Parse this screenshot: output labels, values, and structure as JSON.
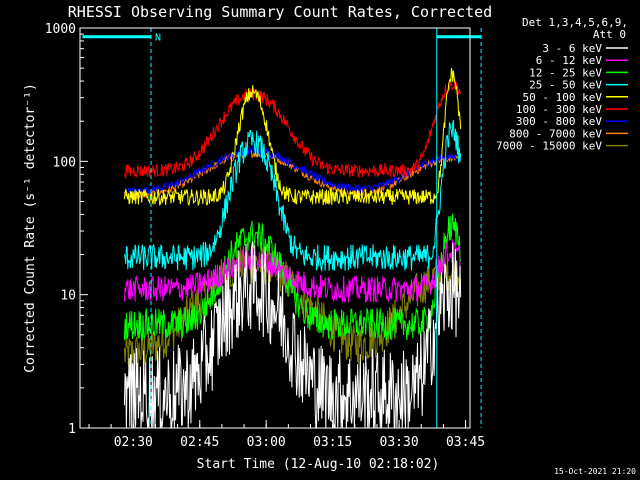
{
  "chart_data": {
    "type": "line",
    "title": "RHESSI Observing Summary Count Rates, Corrected",
    "ylabel": "Corrected Count Rate (s⁻¹ detector⁻¹)",
    "xlabel": "Start Time (12-Aug-10 02:18:02)",
    "y_scale": "log",
    "ylim": [
      1,
      1000
    ],
    "y_ticks": [
      {
        "value": 1,
        "label": "1"
      },
      {
        "value": 10,
        "label": "10"
      },
      {
        "value": 100,
        "label": "100"
      },
      {
        "value": 1000,
        "label": "1000"
      }
    ],
    "xlim_minutes": [
      -12.03,
      76
    ],
    "x_ticks": [
      {
        "minute": 0,
        "label": "02:30"
      },
      {
        "minute": 15,
        "label": "02:45"
      },
      {
        "minute": 30,
        "label": "03:00"
      },
      {
        "minute": 45,
        "label": "03:15"
      },
      {
        "minute": 60,
        "label": "03:30"
      },
      {
        "minute": 75,
        "label": "03:45"
      }
    ],
    "legend_header": [
      "Det 1,3,4,5,6,9,",
      "Att 0"
    ],
    "legend_position": "right",
    "timestamp": "15-Oct-2021 21:20",
    "night_flag": "N",
    "night_bar_level": 860,
    "night_bar_segments": [
      [
        -11.5,
        4.0
      ],
      [
        68.5,
        78.5
      ]
    ],
    "night_boundaries": [
      4.0,
      68.5,
      78.5
    ],
    "series": [
      {
        "name": "3 - 6 keV",
        "color": "#ffffff",
        "start": -2,
        "end": 74,
        "base": 1.8,
        "bumps": [
          [
            27,
            5.5,
            11.5
          ],
          [
            72,
            3,
            11
          ]
        ],
        "noise": 0.35
      },
      {
        "name": "6 - 12 keV",
        "color": "#ff00ff",
        "start": -2,
        "end": 74,
        "base": 11,
        "bumps": [
          [
            27,
            6,
            18
          ],
          [
            72,
            2.5,
            21
          ]
        ],
        "noise": 0.1
      },
      {
        "name": "12 - 25 keV",
        "color": "#00ff00",
        "start": -2,
        "end": 74,
        "base": 6,
        "bumps": [
          [
            27,
            5,
            28
          ],
          [
            72,
            2,
            32
          ]
        ],
        "noise": 0.12
      },
      {
        "name": "25 - 50 keV",
        "color": "#00ffff",
        "start": -2,
        "end": 74,
        "base": 19,
        "bumps": [
          [
            27,
            3.5,
            140
          ],
          [
            72,
            1.6,
            170
          ]
        ],
        "noise": 0.1
      },
      {
        "name": "50 - 100 keV",
        "color": "#ffff00",
        "start": -2,
        "end": 74,
        "base": 54,
        "bumps": [
          [
            27,
            2.5,
            330
          ],
          [
            72,
            1.2,
            450
          ]
        ],
        "noise": 0.06
      },
      {
        "name": "100 - 300 keV",
        "color": "#ff0000",
        "start": -2,
        "end": 74,
        "base": 85,
        "bumps": [
          [
            27,
            6,
            320
          ],
          [
            72,
            3,
            380
          ]
        ],
        "noise": 0.05
      },
      {
        "name": "300 - 800 keV",
        "color": "#0000ff",
        "start": -2,
        "end": 74,
        "base": 59,
        "bumps": [
          [
            27,
            9,
            120
          ],
          [
            72,
            8,
            108
          ]
        ],
        "noise": 0.03
      },
      {
        "name": "800 - 7000 keV",
        "color": "#ff8000",
        "start": -2,
        "end": 74,
        "base": 55,
        "bumps": [
          [
            27,
            9,
            115
          ],
          [
            72,
            8,
            105
          ]
        ],
        "noise": 0.03
      },
      {
        "name": "7000 - 15000 keV",
        "color": "#808000",
        "start": -2,
        "end": 74,
        "base": 3.5,
        "bumps": [
          [
            27,
            9,
            17
          ],
          [
            72,
            8,
            15
          ]
        ],
        "noise": 0.15
      }
    ]
  }
}
